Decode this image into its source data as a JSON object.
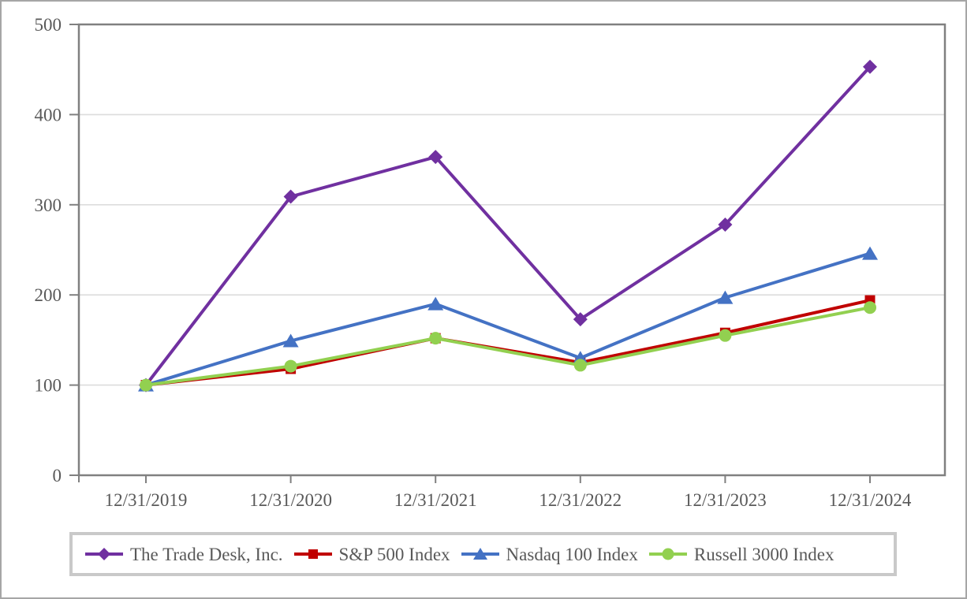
{
  "chart_data": {
    "type": "line",
    "title": "",
    "xlabel": "",
    "ylabel": "",
    "categories": [
      "12/31/2019",
      "12/31/2020",
      "12/31/2021",
      "12/31/2022",
      "12/31/2023",
      "12/31/2024"
    ],
    "series": [
      {
        "name": "The Trade Desk, Inc.",
        "marker": "diamond",
        "color": "#7030A0",
        "values": [
          100,
          309,
          353,
          173,
          278,
          453
        ]
      },
      {
        "name": "S&P 500 Index",
        "marker": "square",
        "color": "#C00000",
        "values": [
          100,
          118,
          152,
          125,
          158,
          194
        ]
      },
      {
        "name": "Nasdaq 100 Index",
        "marker": "triangle",
        "color": "#4472C4",
        "values": [
          100,
          149,
          190,
          130,
          197,
          246
        ]
      },
      {
        "name": "Russell 3000 Index",
        "marker": "circle",
        "color": "#92D050",
        "values": [
          100,
          121,
          152,
          122,
          155,
          186
        ]
      }
    ],
    "ylim": [
      0,
      500
    ],
    "yticks": [
      0,
      100,
      200,
      300,
      400,
      500
    ],
    "grid": true,
    "legend_position": "bottom",
    "colors": {
      "axis": "#808080",
      "gridline": "#DCDCDC",
      "tick_text": "#595959",
      "legend_border": "#C9C9C9",
      "outer_frame": "#A6A6A6",
      "background": "#FFFFFF"
    }
  }
}
